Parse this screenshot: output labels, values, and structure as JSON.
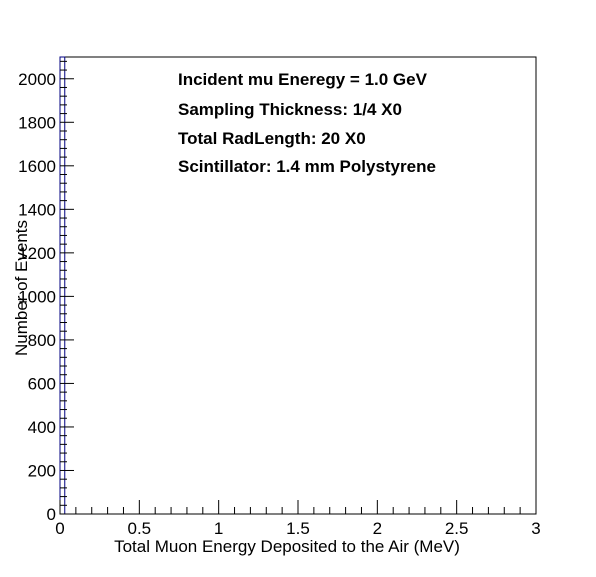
{
  "chart_data": {
    "type": "bar",
    "title": "",
    "xlabel": "Total Muon Energy Deposited to the Air (MeV)",
    "ylabel": "Number of Events",
    "xlim": [
      0,
      3
    ],
    "ylim": [
      0,
      2100
    ],
    "x_ticks": [
      "0",
      "0.5",
      "1",
      "1.5",
      "2",
      "2.5",
      "3"
    ],
    "y_ticks": [
      "0",
      "200",
      "400",
      "600",
      "800",
      "1000",
      "1200",
      "1400",
      "1600",
      "1800",
      "2000"
    ],
    "bins": [
      {
        "x_low": 0.0,
        "x_high": 0.03,
        "count": 2100
      }
    ],
    "annotations": [
      "Incident mu Eneregy = 1.0 GeV",
      "Sampling Thickness: 1/4 X0",
      "Total RadLength: 20 X0",
      "Scintillator: 1.4 mm Polystyrene"
    ],
    "grid": false,
    "legend": "none",
    "colors": {
      "line": "#000080",
      "frame": "#000000",
      "background": "#ffffff"
    }
  }
}
